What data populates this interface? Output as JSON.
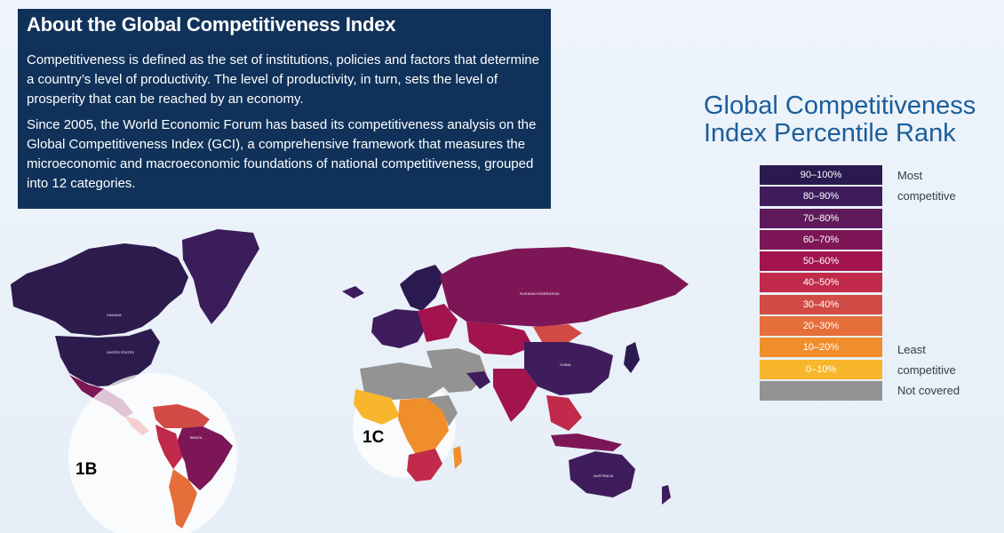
{
  "about": {
    "title": "About the Global Competitiveness Index",
    "paragraph_1": "Competitiveness is defined as the set of institutions, policies and factors that determine a country’s level of productivity. The level of productivity, in turn, sets the level of prosperity that can be reached by an economy.",
    "paragraph_2": "Since 2005, the World Economic Forum has based its competitiveness analysis on the Global Competitiveness Index (GCI), a comprehensive framework that measures the microeconomic and macroeconomic foundations of national competitiveness, grouped into 12 categories."
  },
  "legend": {
    "title_line1": "Global Competitiveness",
    "title_line2": "Index Percentile Rank",
    "bins": [
      {
        "label": "90–100%",
        "color": "#2b1a50"
      },
      {
        "label": "80–90%",
        "color": "#3f1d5c"
      },
      {
        "label": "70–80%",
        "color": "#5e1a5a"
      },
      {
        "label": "60–70%",
        "color": "#7c1656"
      },
      {
        "label": "50–60%",
        "color": "#a3134e"
      },
      {
        "label": "40–50%",
        "color": "#c12a4a"
      },
      {
        "label": "30–40%",
        "color": "#d24a45"
      },
      {
        "label": "20–30%",
        "color": "#e66e3a"
      },
      {
        "label": "10–20%",
        "color": "#f08e2b"
      },
      {
        "label": "0–10%",
        "color": "#f8b62c"
      },
      {
        "label": "",
        "color": "#939393"
      }
    ],
    "most_line1": "Most",
    "most_line2": "competitive",
    "least_line1": "Least",
    "least_line2": "competitive",
    "not_covered": "Not covered"
  },
  "map": {
    "inset_labels": [
      "1B",
      "1C"
    ],
    "country_labels": {
      "united_states": "UNITED STATES",
      "canada": "CANADA",
      "brazil": "BRAZIL",
      "russia": "RUSSIAN FEDERATION",
      "china": "CHINA",
      "australia": "AUSTRALIA"
    }
  }
}
